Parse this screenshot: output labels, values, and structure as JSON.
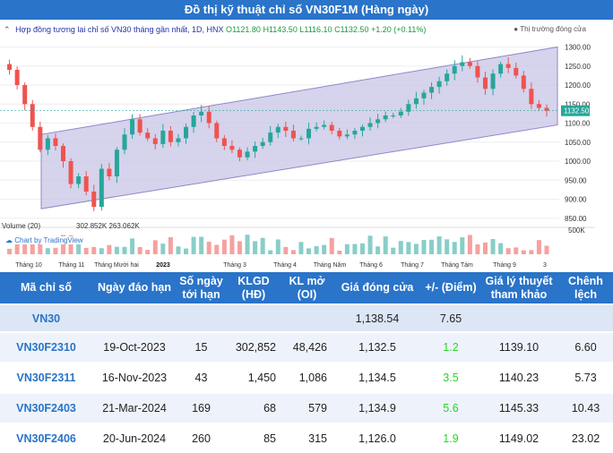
{
  "title": "Đồ thị kỹ thuật chỉ số VN30F1M (Hàng ngày)",
  "legend": {
    "name": "Hợp đồng tương lai chỉ số VN30 tháng gần nhất, 1D, HNX",
    "open": "1121.80",
    "high": "1143.50",
    "low": "1116.10",
    "close": "1132.50",
    "change": "+1.20 (+0.11%)",
    "market_status": "Thị trường đóng cửa"
  },
  "volume": {
    "label": "Volume (20)",
    "values": "302.852K   263.062K",
    "axis_label": "500K"
  },
  "tv_badge": "Chart by TradingView",
  "chart_data": {
    "type": "candlestick",
    "price_axis": [
      "1300.00",
      "1250.00",
      "1200.00",
      "1150.00",
      "1100.00",
      "1050.00",
      "1000.00",
      "950.00",
      "900.00",
      "850.00"
    ],
    "ylim": [
      840,
      1320
    ],
    "last_price_label": "1132.50",
    "time_axis": [
      "Tháng 10",
      "Tháng 11",
      "Tháng Mười hai",
      "2023",
      "Tháng 3",
      "Tháng 4",
      "Tháng Năm",
      "Tháng 6",
      "Tháng 7",
      "Tháng Tám",
      "Tháng 9",
      "3"
    ],
    "close_path": [
      1255,
      1240,
      1200,
      1150,
      1090,
      1030,
      1060,
      1040,
      1000,
      940,
      960,
      920,
      880,
      980,
      960,
      1030,
      1070,
      1110,
      1075,
      1060,
      1045,
      1080,
      1050,
      1060,
      1090,
      1120,
      1130,
      1100,
      1060,
      1040,
      1030,
      1010,
      1025,
      1040,
      1050,
      1075,
      1090,
      1080,
      1060,
      1060,
      1085,
      1090,
      1095,
      1080,
      1065,
      1070,
      1080,
      1090,
      1100,
      1110,
      1120,
      1120,
      1130,
      1150,
      1165,
      1180,
      1195,
      1210,
      1230,
      1250,
      1260,
      1250,
      1220,
      1190,
      1230,
      1255,
      1245,
      1225,
      1190,
      1150,
      1140,
      1132.5
    ],
    "channel_upper": [
      [
        0,
        1070
      ],
      [
        1,
        1300
      ]
    ],
    "channel_lower": [
      [
        0,
        875
      ],
      [
        1,
        1095
      ]
    ]
  },
  "table": {
    "headers": [
      "Mã chỉ số",
      "Ngày đáo hạn",
      "Số ngày tới hạn",
      "KLGD (HĐ)",
      "KL mở (OI)",
      "Giá đóng cửa",
      "+/- (Điểm)",
      "Giá lý thuyết tham khảo",
      "Chênh lệch"
    ],
    "index_row": {
      "code": "VN30",
      "close": "1,138.54",
      "change": "7.65"
    },
    "rows": [
      {
        "code": "VN30F2310",
        "expiry": "19-Oct-2023",
        "days": "15",
        "volume": "302,852",
        "oi": "48,426",
        "close": "1,132.5",
        "change": "1.2",
        "theo": "1139.10",
        "spread": "6.60"
      },
      {
        "code": "VN30F2311",
        "expiry": "16-Nov-2023",
        "days": "43",
        "volume": "1,450",
        "oi": "1,086",
        "close": "1,134.5",
        "change": "3.5",
        "theo": "1140.23",
        "spread": "5.73"
      },
      {
        "code": "VN30F2403",
        "expiry": "21-Mar-2024",
        "days": "169",
        "volume": "68",
        "oi": "579",
        "close": "1,134.9",
        "change": "5.6",
        "theo": "1145.33",
        "spread": "10.43"
      },
      {
        "code": "VN30F2406",
        "expiry": "20-Jun-2024",
        "days": "260",
        "volume": "85",
        "oi": "315",
        "close": "1,126.0",
        "change": "1.9",
        "theo": "1149.02",
        "spread": "23.02"
      }
    ]
  },
  "colors": {
    "header_bg": "#2a74c9",
    "up": "#26a69a",
    "down": "#ef5350",
    "channel": "#c8c4e6",
    "change_up": "#2cd42c"
  }
}
